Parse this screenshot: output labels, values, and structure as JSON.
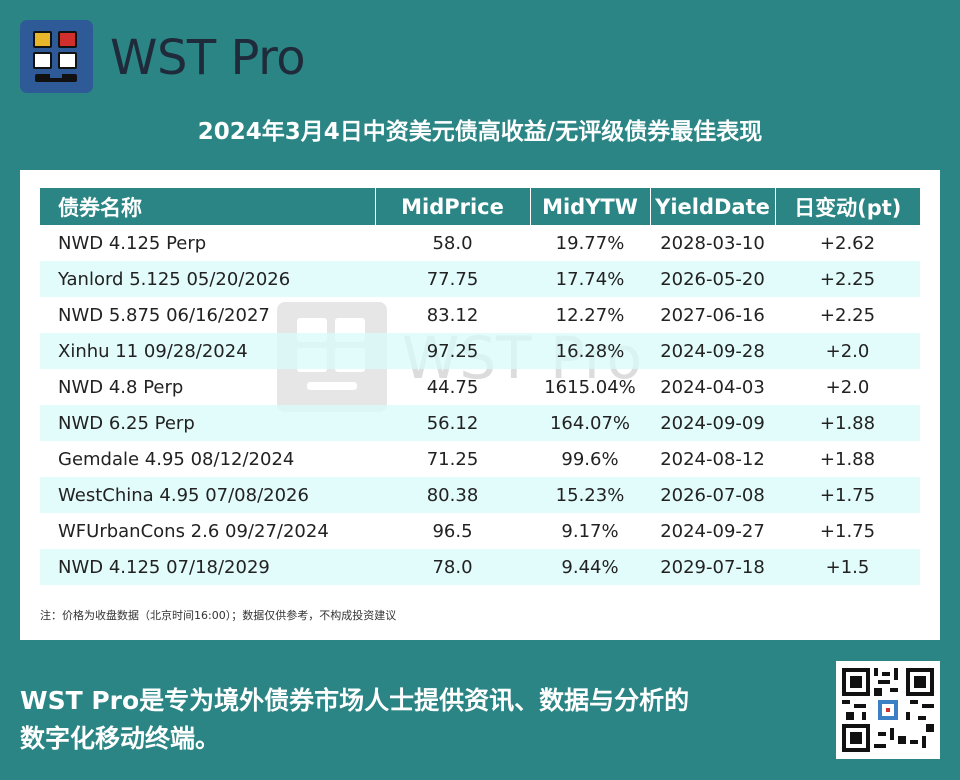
{
  "brand": {
    "name": "WST Pro",
    "colors": {
      "background": "#2b8585",
      "logo_bg": "#2e5b97",
      "logo_yellow": "#e8b62a",
      "logo_red": "#d12e2e"
    }
  },
  "title": "2024年3月4日中资美元债高收益/无评级债券最佳表现",
  "table": {
    "headers": [
      "债券名称",
      "MidPrice",
      "MidYTW",
      "YieldDate",
      "日变动(pt)"
    ],
    "rows": [
      [
        "NWD 4.125 Perp",
        "58.0",
        "19.77%",
        "2028-03-10",
        "+2.62"
      ],
      [
        "Yanlord 5.125 05/20/2026",
        "77.75",
        "17.74%",
        "2026-05-20",
        "+2.25"
      ],
      [
        "NWD 5.875 06/16/2027",
        "83.12",
        "12.27%",
        "2027-06-16",
        "+2.25"
      ],
      [
        "Xinhu 11 09/28/2024",
        "97.25",
        "16.28%",
        "2024-09-28",
        "+2.0"
      ],
      [
        "NWD 4.8 Perp",
        "44.75",
        "1615.04%",
        "2024-04-03",
        "+2.0"
      ],
      [
        "NWD 6.25 Perp",
        "56.12",
        "164.07%",
        "2024-09-09",
        "+1.88"
      ],
      [
        "Gemdale 4.95 08/12/2024",
        "71.25",
        "99.6%",
        "2024-08-12",
        "+1.88"
      ],
      [
        "WestChina 4.95 07/08/2026",
        "80.38",
        "15.23%",
        "2026-07-08",
        "+1.75"
      ],
      [
        "WFUrbanCons 2.6 09/27/2024",
        "96.5",
        "9.17%",
        "2024-09-27",
        "+1.75"
      ],
      [
        "NWD 4.125 07/18/2029",
        "78.0",
        "9.44%",
        "2029-07-18",
        "+1.5"
      ]
    ]
  },
  "note": "注：价格为收盘数据（北京时间16:00）；数据仅供参考，不构成投资建议",
  "watermark": "WST Pro",
  "footer": {
    "line1": "WST Pro是专为境外债券市场人士提供资讯、数据与分析的",
    "line2": "数字化移动终端。"
  }
}
